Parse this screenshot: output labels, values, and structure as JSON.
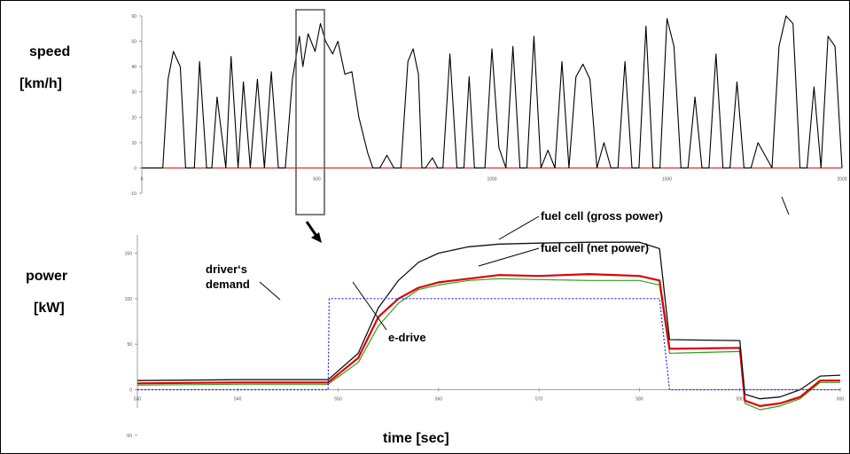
{
  "labels": {
    "speed_line1": "speed",
    "speed_line2": "[km/h]",
    "power_line1": "power",
    "power_line2": "[kW]",
    "driver_line1": "driver‘s",
    "driver_line2": "demand",
    "gross": "fuel cell (gross power)",
    "net": "fuel cell (net power)",
    "edrive": "e-drive",
    "xaxis": "time [sec]"
  },
  "colors": {
    "speed": "#000000",
    "speed_negative": "#e00000",
    "gross": "#111111",
    "net": "#e00000",
    "edrive": "#2fa01c",
    "edrive_highlight": "#d8e800",
    "demand": "#2222ee",
    "zero_line": "#e00000"
  },
  "chart_data": [
    {
      "type": "line",
      "id": "speed",
      "ylabel": "speed [km/h]",
      "ylim": [
        -10,
        60
      ],
      "yticks": [
        "60",
        "50",
        "40",
        "30",
        "20",
        "10",
        "0",
        "-10"
      ],
      "xlim": [
        0,
        2000
      ],
      "xticks": [
        "0",
        "500",
        "1000",
        "1500",
        "2000"
      ],
      "series": [
        {
          "x": [
            0,
            30,
            45,
            60,
            75,
            90,
            110,
            125,
            150,
            165,
            185,
            200,
            215,
            240,
            255,
            275,
            290,
            310,
            330,
            350,
            370,
            390,
            410,
            430,
            450,
            460,
            475,
            495,
            510,
            525,
            545,
            560,
            580,
            600,
            620,
            645,
            660,
            680,
            700,
            720,
            740,
            760,
            775,
            790,
            800,
            810,
            830,
            845,
            860,
            880,
            900,
            920,
            935,
            950,
            980,
            1000,
            1020,
            1040,
            1060,
            1080,
            1100,
            1120,
            1140,
            1160,
            1180,
            1200,
            1220,
            1240,
            1260,
            1280,
            1300,
            1320,
            1340,
            1360,
            1380,
            1400,
            1420,
            1440,
            1460,
            1480,
            1500,
            1520,
            1540,
            1560,
            1580,
            1600,
            1620,
            1640,
            1660,
            1680,
            1700,
            1720,
            1740,
            1760,
            1780,
            1800,
            1820,
            1840,
            1860,
            1880,
            1900,
            1920,
            1940,
            1960,
            1980,
            2000
          ],
          "y": [
            0,
            0,
            0,
            0,
            35,
            46,
            40,
            0,
            0,
            42,
            0,
            0,
            28,
            0,
            44,
            0,
            34,
            0,
            35,
            0,
            38,
            0,
            0,
            35,
            52,
            40,
            53,
            46,
            57,
            50,
            45,
            50,
            37,
            38,
            20,
            6,
            0,
            0,
            5,
            0,
            0,
            42,
            47,
            37,
            0,
            0,
            4,
            0,
            0,
            45,
            0,
            0,
            36,
            0,
            0,
            47,
            8,
            0,
            48,
            0,
            0,
            52,
            0,
            7,
            0,
            42,
            0,
            36,
            41,
            35,
            0,
            10,
            0,
            0,
            42,
            0,
            0,
            56,
            0,
            0,
            59,
            48,
            0,
            0,
            28,
            0,
            0,
            45,
            0,
            0,
            34,
            0,
            0,
            10,
            5,
            0,
            48,
            60,
            57,
            0,
            0,
            32,
            0,
            52,
            48,
            0
          ]
        }
      ]
    },
    {
      "type": "line",
      "id": "power",
      "ylabel": "power [kW]",
      "xlabel": "time [sec]",
      "ylim": [
        -20,
        170
      ],
      "yticks": [
        "150",
        "100",
        "50",
        "0",
        "-50"
      ],
      "xlim": [
        530,
        600
      ],
      "xticks": [
        "530",
        "540",
        "550",
        "560",
        "570",
        "580",
        "590",
        "600"
      ],
      "series": [
        {
          "name": "fuel cell (gross power)",
          "x": [
            530,
            540,
            549,
            552,
            554,
            556,
            558,
            560,
            563,
            566,
            570,
            575,
            580,
            582,
            583,
            590,
            590.5,
            592,
            594,
            596,
            598,
            600
          ],
          "y": [
            10,
            11,
            11,
            40,
            90,
            120,
            140,
            150,
            157,
            160,
            161,
            162,
            162,
            155,
            55,
            54,
            -5,
            -10,
            -8,
            0,
            15,
            16
          ]
        },
        {
          "name": "fuel cell (net power)",
          "x": [
            530,
            540,
            549,
            552,
            554,
            556,
            558,
            560,
            563,
            566,
            570,
            575,
            580,
            582,
            583,
            590,
            590.5,
            592,
            594,
            596,
            598,
            600
          ],
          "y": [
            7,
            8,
            8,
            35,
            80,
            100,
            112,
            118,
            122,
            126,
            125,
            127,
            125,
            120,
            45,
            46,
            -12,
            -18,
            -15,
            -8,
            10,
            10
          ]
        },
        {
          "name": "e-drive",
          "x": [
            530,
            540,
            549,
            552,
            554,
            556,
            558,
            560,
            563,
            566,
            570,
            575,
            580,
            582,
            583,
            590,
            590.5,
            592,
            594,
            596,
            598,
            600
          ],
          "y": [
            5,
            6,
            6,
            30,
            70,
            95,
            110,
            115,
            120,
            122,
            121,
            120,
            120,
            115,
            40,
            42,
            -15,
            -22,
            -18,
            -10,
            8,
            8
          ]
        },
        {
          "name": "driver‘s demand",
          "x": [
            530,
            549,
            549.1,
            582,
            583,
            590,
            590.5,
            600
          ],
          "y": [
            0,
            0,
            100,
            100,
            0,
            0,
            0,
            0
          ]
        }
      ]
    }
  ]
}
